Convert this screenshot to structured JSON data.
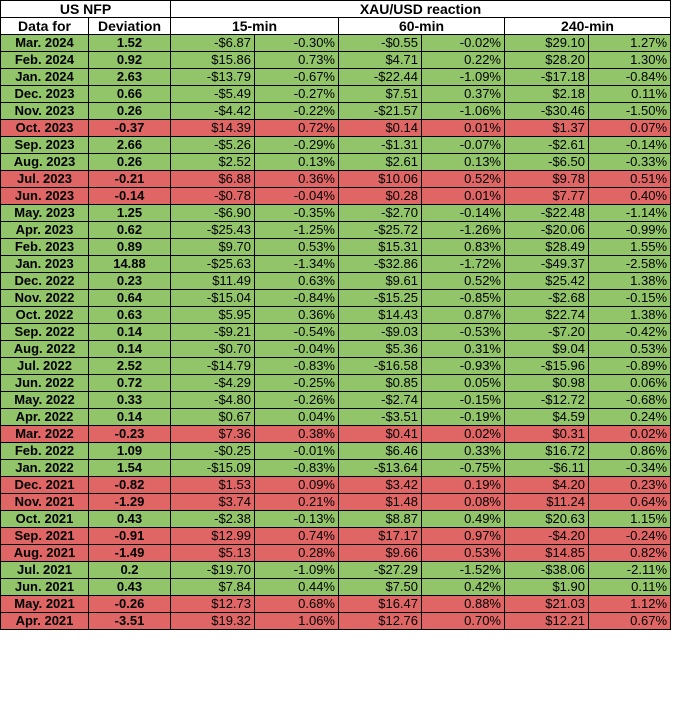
{
  "header": {
    "us_nfp": "US NFP",
    "reaction": "XAU/USD reaction",
    "data_for": "Data for",
    "deviation": "Deviation",
    "m15": "15-min",
    "m60": "60-min",
    "m240": "240-min"
  },
  "colors": {
    "positive_row": "#92c46a",
    "negative_row": "#e06666"
  },
  "rows": [
    {
      "date": "Mar. 2024",
      "dev": "1.52",
      "d15": "-$6.87",
      "p15": "-0.30%",
      "d60": "-$0.55",
      "p60": "-0.02%",
      "d240": "$29.10",
      "p240": "1.27%",
      "sign": "pos"
    },
    {
      "date": "Feb. 2024",
      "dev": "0.92",
      "d15": "$15.86",
      "p15": "0.73%",
      "d60": "$4.71",
      "p60": "0.22%",
      "d240": "$28.20",
      "p240": "1.30%",
      "sign": "pos"
    },
    {
      "date": "Jan. 2024",
      "dev": "2.63",
      "d15": "-$13.79",
      "p15": "-0.67%",
      "d60": "-$22.44",
      "p60": "-1.09%",
      "d240": "-$17.18",
      "p240": "-0.84%",
      "sign": "pos"
    },
    {
      "date": "Dec. 2023",
      "dev": "0.66",
      "d15": "-$5.49",
      "p15": "-0.27%",
      "d60": "$7.51",
      "p60": "0.37%",
      "d240": "$2.18",
      "p240": "0.11%",
      "sign": "pos"
    },
    {
      "date": "Nov. 2023",
      "dev": "0.26",
      "d15": "-$4.42",
      "p15": "-0.22%",
      "d60": "-$21.57",
      "p60": "-1.06%",
      "d240": "-$30.46",
      "p240": "-1.50%",
      "sign": "pos"
    },
    {
      "date": "Oct. 2023",
      "dev": "-0.37",
      "d15": "$14.39",
      "p15": "0.72%",
      "d60": "$0.14",
      "p60": "0.01%",
      "d240": "$1.37",
      "p240": "0.07%",
      "sign": "neg"
    },
    {
      "date": "Sep. 2023",
      "dev": "2.66",
      "d15": "-$5.26",
      "p15": "-0.29%",
      "d60": "-$1.31",
      "p60": "-0.07%",
      "d240": "-$2.61",
      "p240": "-0.14%",
      "sign": "pos"
    },
    {
      "date": "Aug. 2023",
      "dev": "0.26",
      "d15": "$2.52",
      "p15": "0.13%",
      "d60": "$2.61",
      "p60": "0.13%",
      "d240": "-$6.50",
      "p240": "-0.33%",
      "sign": "pos"
    },
    {
      "date": "Jul. 2023",
      "dev": "-0.21",
      "d15": "$6.88",
      "p15": "0.36%",
      "d60": "$10.06",
      "p60": "0.52%",
      "d240": "$9.78",
      "p240": "0.51%",
      "sign": "neg"
    },
    {
      "date": "Jun. 2023",
      "dev": "-0.14",
      "d15": "-$0.78",
      "p15": "-0.04%",
      "d60": "$0.28",
      "p60": "0.01%",
      "d240": "$7.77",
      "p240": "0.40%",
      "sign": "neg"
    },
    {
      "date": "May. 2023",
      "dev": "1.25",
      "d15": "-$6.90",
      "p15": "-0.35%",
      "d60": "-$2.70",
      "p60": "-0.14%",
      "d240": "-$22.48",
      "p240": "-1.14%",
      "sign": "pos"
    },
    {
      "date": "Apr. 2023",
      "dev": "0.62",
      "d15": "-$25.43",
      "p15": "-1.25%",
      "d60": "-$25.72",
      "p60": "-1.26%",
      "d240": "-$20.06",
      "p240": "-0.99%",
      "sign": "pos"
    },
    {
      "date": "Feb. 2023",
      "dev": "0.89",
      "d15": "$9.70",
      "p15": "0.53%",
      "d60": "$15.31",
      "p60": "0.83%",
      "d240": "$28.49",
      "p240": "1.55%",
      "sign": "pos"
    },
    {
      "date": "Jan. 2023",
      "dev": "14.88",
      "d15": "-$25.63",
      "p15": "-1.34%",
      "d60": "-$32.86",
      "p60": "-1.72%",
      "d240": "-$49.37",
      "p240": "-2.58%",
      "sign": "pos"
    },
    {
      "date": "Dec. 2022",
      "dev": "0.23",
      "d15": "$11.49",
      "p15": "0.63%",
      "d60": "$9.61",
      "p60": "0.52%",
      "d240": "$25.42",
      "p240": "1.38%",
      "sign": "pos"
    },
    {
      "date": "Nov. 2022",
      "dev": "0.64",
      "d15": "-$15.04",
      "p15": "-0.84%",
      "d60": "-$15.25",
      "p60": "-0.85%",
      "d240": "-$2.68",
      "p240": "-0.15%",
      "sign": "pos"
    },
    {
      "date": "Oct. 2022",
      "dev": "0.63",
      "d15": "$5.95",
      "p15": "0.36%",
      "d60": "$14.43",
      "p60": "0.87%",
      "d240": "$22.74",
      "p240": "1.38%",
      "sign": "pos"
    },
    {
      "date": "Sep. 2022",
      "dev": "0.14",
      "d15": "-$9.21",
      "p15": "-0.54%",
      "d60": "-$9.03",
      "p60": "-0.53%",
      "d240": "-$7.20",
      "p240": "-0.42%",
      "sign": "pos"
    },
    {
      "date": "Aug. 2022",
      "dev": "0.14",
      "d15": "-$0.70",
      "p15": "-0.04%",
      "d60": "$5.36",
      "p60": "0.31%",
      "d240": "$9.04",
      "p240": "0.53%",
      "sign": "pos"
    },
    {
      "date": "Jul. 2022",
      "dev": "2.52",
      "d15": "-$14.79",
      "p15": "-0.83%",
      "d60": "-$16.58",
      "p60": "-0.93%",
      "d240": "-$15.96",
      "p240": "-0.89%",
      "sign": "pos"
    },
    {
      "date": "Jun. 2022",
      "dev": "0.72",
      "d15": "-$4.29",
      "p15": "-0.25%",
      "d60": "$0.85",
      "p60": "0.05%",
      "d240": "$0.98",
      "p240": "0.06%",
      "sign": "pos"
    },
    {
      "date": "May. 2022",
      "dev": "0.33",
      "d15": "-$4.80",
      "p15": "-0.26%",
      "d60": "-$2.74",
      "p60": "-0.15%",
      "d240": "-$12.72",
      "p240": "-0.68%",
      "sign": "pos"
    },
    {
      "date": "Apr. 2022",
      "dev": "0.14",
      "d15": "$0.67",
      "p15": "0.04%",
      "d60": "-$3.51",
      "p60": "-0.19%",
      "d240": "$4.59",
      "p240": "0.24%",
      "sign": "pos"
    },
    {
      "date": "Mar. 2022",
      "dev": "-0.23",
      "d15": "$7.36",
      "p15": "0.38%",
      "d60": "$0.41",
      "p60": "0.02%",
      "d240": "$0.31",
      "p240": "0.02%",
      "sign": "neg"
    },
    {
      "date": "Feb. 2022",
      "dev": "1.09",
      "d15": "-$0.25",
      "p15": "-0.01%",
      "d60": "$6.46",
      "p60": "0.33%",
      "d240": "$16.72",
      "p240": "0.86%",
      "sign": "pos"
    },
    {
      "date": "Jan. 2022",
      "dev": "1.54",
      "d15": "-$15.09",
      "p15": "-0.83%",
      "d60": "-$13.64",
      "p60": "-0.75%",
      "d240": "-$6.11",
      "p240": "-0.34%",
      "sign": "pos"
    },
    {
      "date": "Dec. 2021",
      "dev": "-0.82",
      "d15": "$1.53",
      "p15": "0.09%",
      "d60": "$3.42",
      "p60": "0.19%",
      "d240": "$4.20",
      "p240": "0.23%",
      "sign": "neg"
    },
    {
      "date": "Nov. 2021",
      "dev": "-1.29",
      "d15": "$3.74",
      "p15": "0.21%",
      "d60": "$1.48",
      "p60": "0.08%",
      "d240": "$11.24",
      "p240": "0.64%",
      "sign": "neg"
    },
    {
      "date": "Oct. 2021",
      "dev": "0.43",
      "d15": "-$2.38",
      "p15": "-0.13%",
      "d60": "$8.87",
      "p60": "0.49%",
      "d240": "$20.63",
      "p240": "1.15%",
      "sign": "pos"
    },
    {
      "date": "Sep. 2021",
      "dev": "-0.91",
      "d15": "$12.99",
      "p15": "0.74%",
      "d60": "$17.17",
      "p60": "0.97%",
      "d240": "-$4.20",
      "p240": "-0.24%",
      "sign": "neg"
    },
    {
      "date": "Aug. 2021",
      "dev": "-1.49",
      "d15": "$5.13",
      "p15": "0.28%",
      "d60": "$9.66",
      "p60": "0.53%",
      "d240": "$14.85",
      "p240": "0.82%",
      "sign": "neg"
    },
    {
      "date": "Jul. 2021",
      "dev": "0.2",
      "d15": "-$19.70",
      "p15": "-1.09%",
      "d60": "-$27.29",
      "p60": "-1.52%",
      "d240": "-$38.06",
      "p240": "-2.11%",
      "sign": "pos"
    },
    {
      "date": "Jun. 2021",
      "dev": "0.43",
      "d15": "$7.84",
      "p15": "0.44%",
      "d60": "$7.50",
      "p60": "0.42%",
      "d240": "$1.90",
      "p240": "0.11%",
      "sign": "pos"
    },
    {
      "date": "May. 2021",
      "dev": "-0.26",
      "d15": "$12.73",
      "p15": "0.68%",
      "d60": "$16.47",
      "p60": "0.88%",
      "d240": "$21.03",
      "p240": "1.12%",
      "sign": "neg"
    },
    {
      "date": "Apr. 2021",
      "dev": "-3.51",
      "d15": "$19.32",
      "p15": "1.06%",
      "d60": "$12.76",
      "p60": "0.70%",
      "d240": "$12.21",
      "p240": "0.67%",
      "sign": "neg"
    }
  ]
}
